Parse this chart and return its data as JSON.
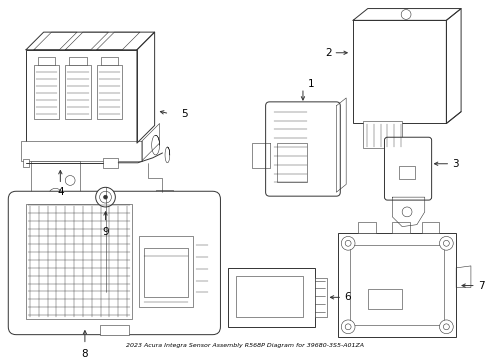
{
  "title": "2023 Acura Integra Sensor Assembly R568P Diagram for 39680-3S5-A01ZA",
  "background_color": "#ffffff",
  "line_color": "#333333",
  "fig_width": 4.9,
  "fig_height": 3.6,
  "dpi": 100
}
